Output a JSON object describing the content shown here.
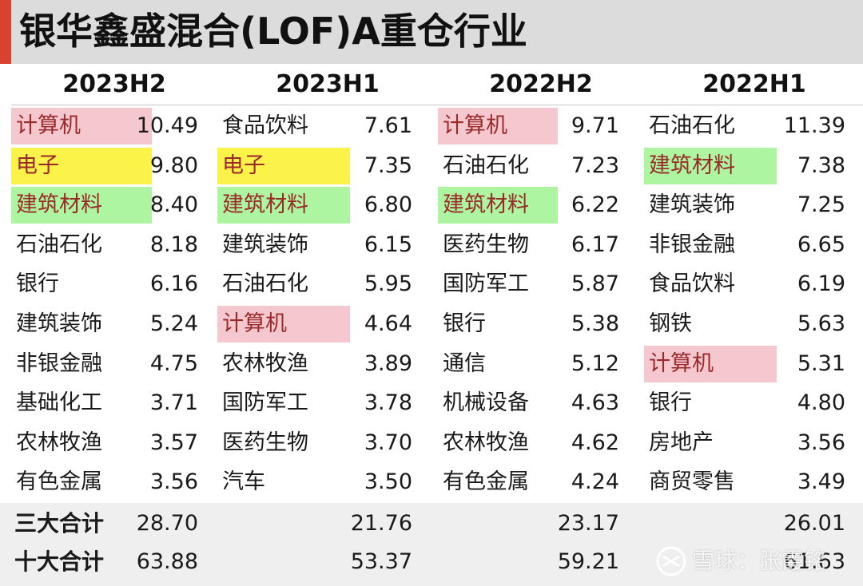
{
  "title": "银华鑫盛混合(LOF)A重仓行业",
  "periods": [
    {
      "label": "2023H2",
      "rows": [
        {
          "name": "计算机",
          "value": "10.49",
          "highlight": "pink"
        },
        {
          "name": "电子",
          "value": "9.80",
          "highlight": "yellow"
        },
        {
          "name": "建筑材料",
          "value": "8.40",
          "highlight": "green"
        },
        {
          "name": "石油石化",
          "value": "8.18",
          "highlight": ""
        },
        {
          "name": "银行",
          "value": "6.16",
          "highlight": ""
        },
        {
          "name": "建筑装饰",
          "value": "5.24",
          "highlight": ""
        },
        {
          "name": "非银金融",
          "value": "4.75",
          "highlight": ""
        },
        {
          "name": "基础化工",
          "value": "3.71",
          "highlight": ""
        },
        {
          "name": "农林牧渔",
          "value": "3.57",
          "highlight": ""
        },
        {
          "name": "有色金属",
          "value": "3.56",
          "highlight": ""
        }
      ],
      "top3_total": "28.70",
      "top10_total": "63.88"
    },
    {
      "label": "2023H1",
      "rows": [
        {
          "name": "食品饮料",
          "value": "7.61",
          "highlight": ""
        },
        {
          "name": "电子",
          "value": "7.35",
          "highlight": "yellow"
        },
        {
          "name": "建筑材料",
          "value": "6.80",
          "highlight": "green"
        },
        {
          "name": "建筑装饰",
          "value": "6.15",
          "highlight": ""
        },
        {
          "name": "石油石化",
          "value": "5.95",
          "highlight": ""
        },
        {
          "name": "计算机",
          "value": "4.64",
          "highlight": "pink"
        },
        {
          "name": "农林牧渔",
          "value": "3.89",
          "highlight": ""
        },
        {
          "name": "国防军工",
          "value": "3.78",
          "highlight": ""
        },
        {
          "name": "医药生物",
          "value": "3.70",
          "highlight": ""
        },
        {
          "name": "汽车",
          "value": "3.50",
          "highlight": ""
        }
      ],
      "top3_total": "21.76",
      "top10_total": "53.37"
    },
    {
      "label": "2022H2",
      "rows": [
        {
          "name": "计算机",
          "value": "9.71",
          "highlight": "pink"
        },
        {
          "name": "石油石化",
          "value": "7.23",
          "highlight": ""
        },
        {
          "name": "建筑材料",
          "value": "6.22",
          "highlight": "green"
        },
        {
          "name": "医药生物",
          "value": "6.17",
          "highlight": ""
        },
        {
          "name": "国防军工",
          "value": "5.87",
          "highlight": ""
        },
        {
          "name": "银行",
          "value": "5.38",
          "highlight": ""
        },
        {
          "name": "通信",
          "value": "5.12",
          "highlight": ""
        },
        {
          "name": "机械设备",
          "value": "4.63",
          "highlight": ""
        },
        {
          "name": "农林牧渔",
          "value": "4.62",
          "highlight": ""
        },
        {
          "name": "有色金属",
          "value": "4.24",
          "highlight": ""
        }
      ],
      "top3_total": "23.17",
      "top10_total": "59.21"
    },
    {
      "label": "2022H1",
      "rows": [
        {
          "name": "石油石化",
          "value": "11.39",
          "highlight": ""
        },
        {
          "name": "建筑材料",
          "value": "7.38",
          "highlight": "green"
        },
        {
          "name": "建筑装饰",
          "value": "7.25",
          "highlight": ""
        },
        {
          "name": "非银金融",
          "value": "6.65",
          "highlight": ""
        },
        {
          "name": "食品饮料",
          "value": "6.19",
          "highlight": ""
        },
        {
          "name": "钢铁",
          "value": "5.63",
          "highlight": ""
        },
        {
          "name": "计算机",
          "value": "5.31",
          "highlight": "pink"
        },
        {
          "name": "银行",
          "value": "4.80",
          "highlight": ""
        },
        {
          "name": "房地产",
          "value": "3.56",
          "highlight": ""
        },
        {
          "name": "商贸零售",
          "value": "3.49",
          "highlight": ""
        }
      ],
      "top3_total": "26.01",
      "top10_total": "61.63"
    }
  ],
  "summary_labels": {
    "top3": "三大合计",
    "top10": "十大合计"
  },
  "watermark": {
    "text": "雪球：张霞铭",
    "icon": "snowball-logo-icon"
  },
  "colors": {
    "accent": "#d9422d",
    "highlight_pink": "#f5c8d0",
    "highlight_yellow": "#fbf24a",
    "highlight_green": "#adf5a0",
    "highlight_text": "#9a2a2a"
  }
}
